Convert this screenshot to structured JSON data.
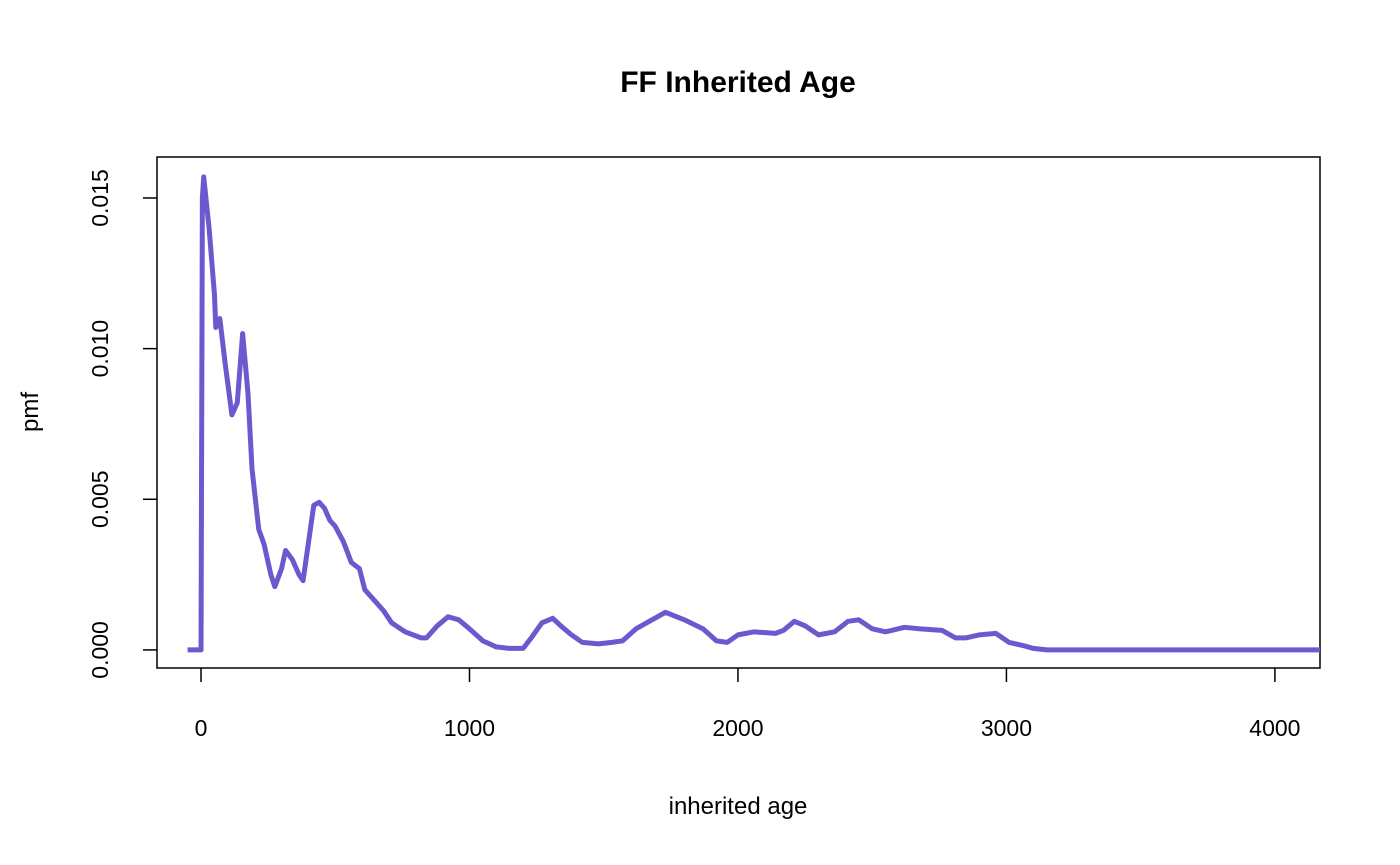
{
  "chart_data": {
    "type": "line",
    "title": "FF Inherited Age",
    "xlabel": "inherited age",
    "ylabel": "pmf",
    "x": [
      -50,
      0,
      5,
      10,
      30,
      50,
      55,
      70,
      90,
      115,
      135,
      155,
      175,
      190,
      215,
      235,
      260,
      275,
      300,
      315,
      340,
      365,
      380,
      420,
      440,
      460,
      480,
      500,
      530,
      560,
      590,
      610,
      650,
      680,
      710,
      760,
      820,
      840,
      880,
      920,
      960,
      1000,
      1050,
      1100,
      1150,
      1200,
      1230,
      1270,
      1310,
      1340,
      1380,
      1420,
      1480,
      1530,
      1570,
      1620,
      1680,
      1730,
      1800,
      1870,
      1920,
      1960,
      2000,
      2060,
      2140,
      2170,
      2210,
      2250,
      2300,
      2360,
      2410,
      2450,
      2500,
      2550,
      2620,
      2680,
      2760,
      2810,
      2850,
      2900,
      2960,
      3010,
      3060,
      3100,
      3150,
      4168
    ],
    "series": [
      {
        "name": "pmf",
        "color": "#6a5acd",
        "values": [
          0,
          0,
          0.015,
          0.0157,
          0.014,
          0.0118,
          0.0107,
          0.011,
          0.0095,
          0.0078,
          0.0082,
          0.0105,
          0.0085,
          0.006,
          0.004,
          0.0035,
          0.0025,
          0.0021,
          0.0027,
          0.0033,
          0.003,
          0.0025,
          0.0023,
          0.0048,
          0.0049,
          0.0047,
          0.0043,
          0.0041,
          0.0036,
          0.0029,
          0.0027,
          0.002,
          0.0016,
          0.0013,
          0.0009,
          0.0006,
          0.0004,
          0.0004,
          0.0008,
          0.0011,
          0.001,
          0.0007,
          0.0003,
          0.0001,
          5e-05,
          5e-05,
          0.0004,
          0.0009,
          0.00105,
          0.0008,
          0.0005,
          0.00025,
          0.0002,
          0.00025,
          0.0003,
          0.0007,
          0.001,
          0.00125,
          0.001,
          0.0007,
          0.0003,
          0.00025,
          0.0005,
          0.0006,
          0.00055,
          0.00065,
          0.00095,
          0.0008,
          0.0005,
          0.0006,
          0.00095,
          0.001,
          0.0007,
          0.0006,
          0.00075,
          0.0007,
          0.00065,
          0.0004,
          0.0004,
          0.0005,
          0.00055,
          0.00025,
          0.00015,
          5e-05,
          0,
          0
        ]
      }
    ],
    "xlim": [
      -164,
      4168
    ],
    "ylim": [
      -0.0006,
      0.01636
    ],
    "xticks": [
      0,
      1000,
      2000,
      3000,
      4000
    ],
    "yticks": [
      {
        "value": 0,
        "label": "0.000"
      },
      {
        "value": 0.005,
        "label": "0.005"
      },
      {
        "value": 0.01,
        "label": "0.010"
      },
      {
        "value": 0.015,
        "label": "0.015"
      }
    ]
  }
}
